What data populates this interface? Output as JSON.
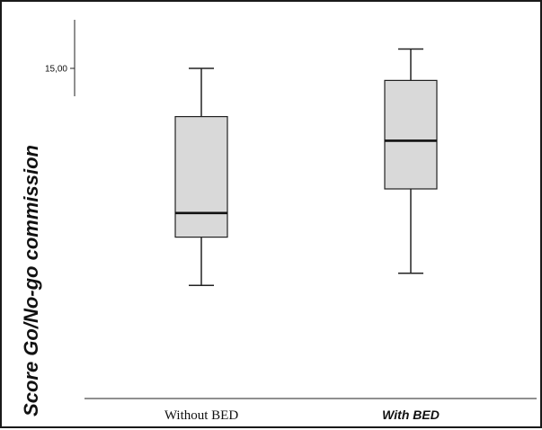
{
  "chart_data": {
    "type": "boxplot",
    "ylabel": "Score Go/No-go commission",
    "y_ticks": [
      {
        "value": 15,
        "label": "15,00"
      }
    ],
    "ylim": [
      -5,
      17
    ],
    "categories": [
      {
        "label": "Without BED",
        "style": "normal"
      },
      {
        "label": "With BED",
        "style": "bold-italic"
      }
    ],
    "boxes": [
      {
        "whisker_low": -3,
        "q1": 1,
        "median": 3,
        "q3": 11,
        "whisker_high": 15
      },
      {
        "whisker_low": -2,
        "q1": 5,
        "median": 9,
        "q3": 14,
        "whisker_high": 16.6
      }
    ],
    "box_fill": "#d9d9d9",
    "line_color": "#222222",
    "grid": false
  }
}
